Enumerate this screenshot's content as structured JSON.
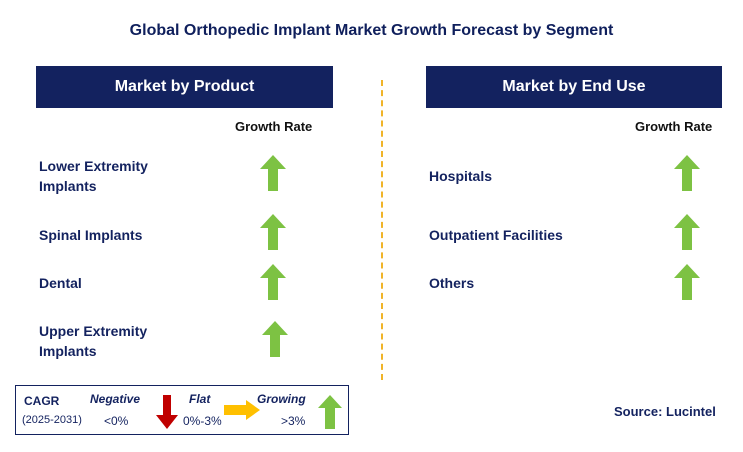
{
  "title": "Global Orthopedic Implant Market Growth Forecast by Segment",
  "left_panel": {
    "header": "Market by Product",
    "growth_label": "Growth Rate",
    "rows": [
      {
        "label_lines": [
          "Lower Extremity",
          "Implants"
        ],
        "trend": "growing"
      },
      {
        "label_lines": [
          "Spinal Implants"
        ],
        "trend": "growing"
      },
      {
        "label_lines": [
          "Dental"
        ],
        "trend": "growing"
      },
      {
        "label_lines": [
          "Upper Extremity",
          "Implants"
        ],
        "trend": "growing"
      }
    ]
  },
  "right_panel": {
    "header": "Market by End Use",
    "growth_label": "Growth Rate",
    "rows": [
      {
        "label_lines": [
          "Hospitals"
        ],
        "trend": "growing"
      },
      {
        "label_lines": [
          "Outpatient Facilities"
        ],
        "trend": "growing"
      },
      {
        "label_lines": [
          "Others"
        ],
        "trend": "growing"
      }
    ]
  },
  "legend": {
    "cagr_label": "CAGR",
    "period": "(2025-2031)",
    "negative": {
      "label": "Negative",
      "range": "<0%",
      "icon": "down-arrow-icon",
      "color": "#c00000"
    },
    "flat": {
      "label": "Flat",
      "range": "0%-3%",
      "icon": "right-arrow-icon",
      "color": "#ffc000"
    },
    "growing": {
      "label": "Growing",
      "range": ">3%",
      "icon": "up-arrow-icon",
      "color": "#7dc243"
    }
  },
  "source": "Source: Lucintel",
  "colors": {
    "header_bg": "#13225f",
    "growing": "#7dc243",
    "flat": "#ffc000",
    "negative": "#c00000",
    "divider": "#f0b429"
  }
}
